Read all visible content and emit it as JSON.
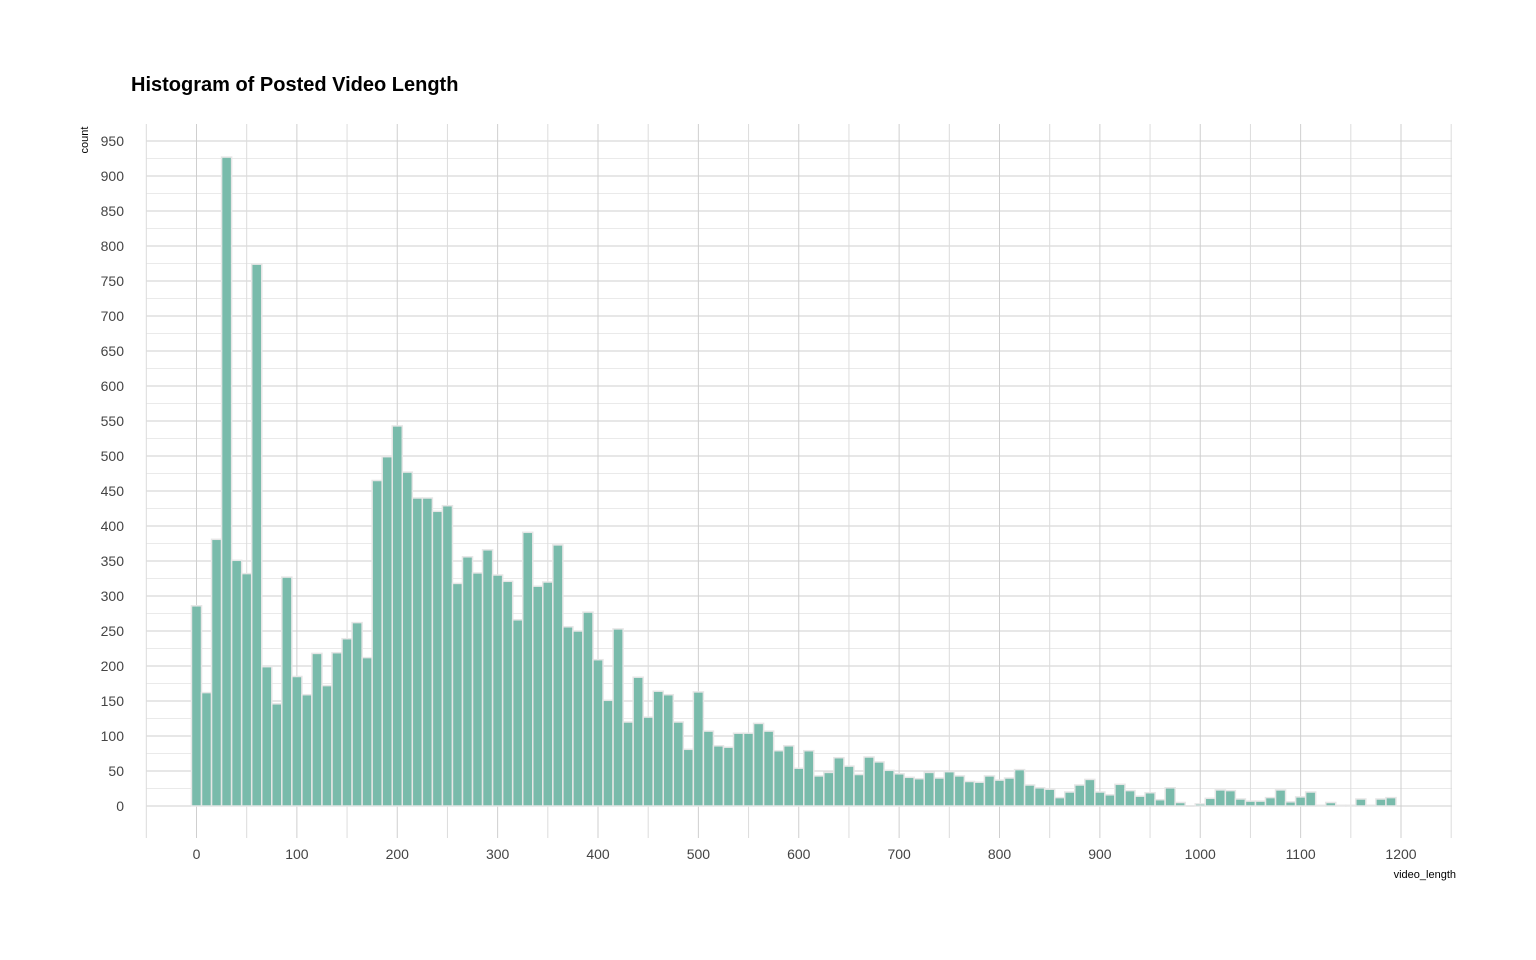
{
  "chart_data": {
    "type": "bar",
    "title": "Histogram of Posted Video Length",
    "xlabel": "video_length",
    "ylabel": "count",
    "xlim": [
      -50,
      1250
    ],
    "ylim": [
      0,
      950
    ],
    "x_ticks": [
      0,
      100,
      200,
      300,
      400,
      500,
      600,
      700,
      800,
      900,
      1000,
      1100,
      1200
    ],
    "y_ticks": [
      0,
      50,
      100,
      150,
      200,
      250,
      300,
      350,
      400,
      450,
      500,
      550,
      600,
      650,
      700,
      750,
      800,
      850,
      900,
      950
    ],
    "grid": true,
    "bin_width": 10,
    "bar_color": "#79bbab",
    "bar_edge_color": "#e6e6e6",
    "bin_centers": [
      0,
      10,
      20,
      30,
      40,
      50,
      60,
      70,
      80,
      90,
      100,
      110,
      120,
      130,
      140,
      150,
      160,
      170,
      180,
      190,
      200,
      210,
      220,
      230,
      240,
      250,
      260,
      270,
      280,
      290,
      300,
      310,
      320,
      330,
      340,
      350,
      360,
      370,
      380,
      390,
      400,
      410,
      420,
      430,
      440,
      450,
      460,
      470,
      480,
      490,
      500,
      510,
      520,
      530,
      540,
      550,
      560,
      570,
      580,
      590,
      600,
      610,
      620,
      630,
      640,
      650,
      660,
      670,
      680,
      690,
      700,
      710,
      720,
      730,
      740,
      750,
      760,
      770,
      780,
      790,
      800,
      810,
      820,
      830,
      840,
      850,
      860,
      870,
      880,
      890,
      900,
      910,
      920,
      930,
      940,
      950,
      960,
      970,
      980,
      990,
      1000,
      1010,
      1020,
      1030,
      1040,
      1050,
      1060,
      1070,
      1080,
      1090,
      1100,
      1110,
      1120,
      1130,
      1140,
      1150,
      1160,
      1170,
      1180,
      1190
    ],
    "values": [
      286,
      162,
      381,
      927,
      351,
      332,
      774,
      199,
      146,
      327,
      185,
      159,
      218,
      172,
      219,
      239,
      262,
      212,
      465,
      499,
      543,
      477,
      440,
      440,
      421,
      429,
      318,
      356,
      333,
      366,
      330,
      321,
      266,
      391,
      314,
      320,
      373,
      256,
      250,
      277,
      209,
      151,
      253,
      120,
      184,
      127,
      164,
      159,
      120,
      81,
      163,
      107,
      86,
      84,
      104,
      104,
      118,
      107,
      79,
      86,
      54,
      79,
      43,
      48,
      69,
      57,
      45,
      70,
      63,
      51,
      46,
      41,
      39,
      48,
      40,
      49,
      43,
      35,
      34,
      43,
      37,
      40,
      52,
      30,
      26,
      24,
      12,
      20,
      30,
      38,
      20,
      16,
      31,
      22,
      14,
      19,
      9,
      26,
      5,
      0,
      3,
      11,
      23,
      22,
      10,
      7,
      7,
      12,
      23,
      6,
      13,
      20,
      1,
      5,
      1,
      1,
      10,
      1,
      10,
      12
    ]
  }
}
